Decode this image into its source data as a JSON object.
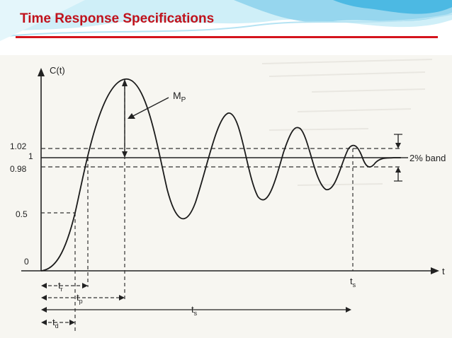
{
  "slide": {
    "title": "Time Response Specifications"
  },
  "colors": {
    "title": "#c0121c",
    "rule": "#d4141c",
    "header_wave_light": "#cfeff8",
    "header_wave_mid": "#8fd3ec",
    "header_wave_dark": "#3fb4e0",
    "ink": "#222222",
    "paper": "#f7f6f1"
  },
  "diagram": {
    "y_axis_label": "C(t)",
    "x_axis_label": "t",
    "y_ticks": [
      "1.02",
      "1",
      "0.98",
      "0.5",
      "0"
    ],
    "peak_label_main": "M",
    "peak_label_sub": "P",
    "band_label": "2% band",
    "ts_axis_main": "t",
    "ts_axis_sub": "s",
    "dimensions": {
      "rise_time": {
        "main": "t",
        "sub": "r"
      },
      "peak_time": {
        "main": "t",
        "sub": "p"
      },
      "settling_time": {
        "main": "t",
        "sub": "s"
      },
      "delay_time": {
        "main": "t",
        "sub": "d"
      }
    },
    "icons": [
      "arrow-up-icon",
      "arrow-down-icon",
      "arrow-right-icon"
    ]
  }
}
